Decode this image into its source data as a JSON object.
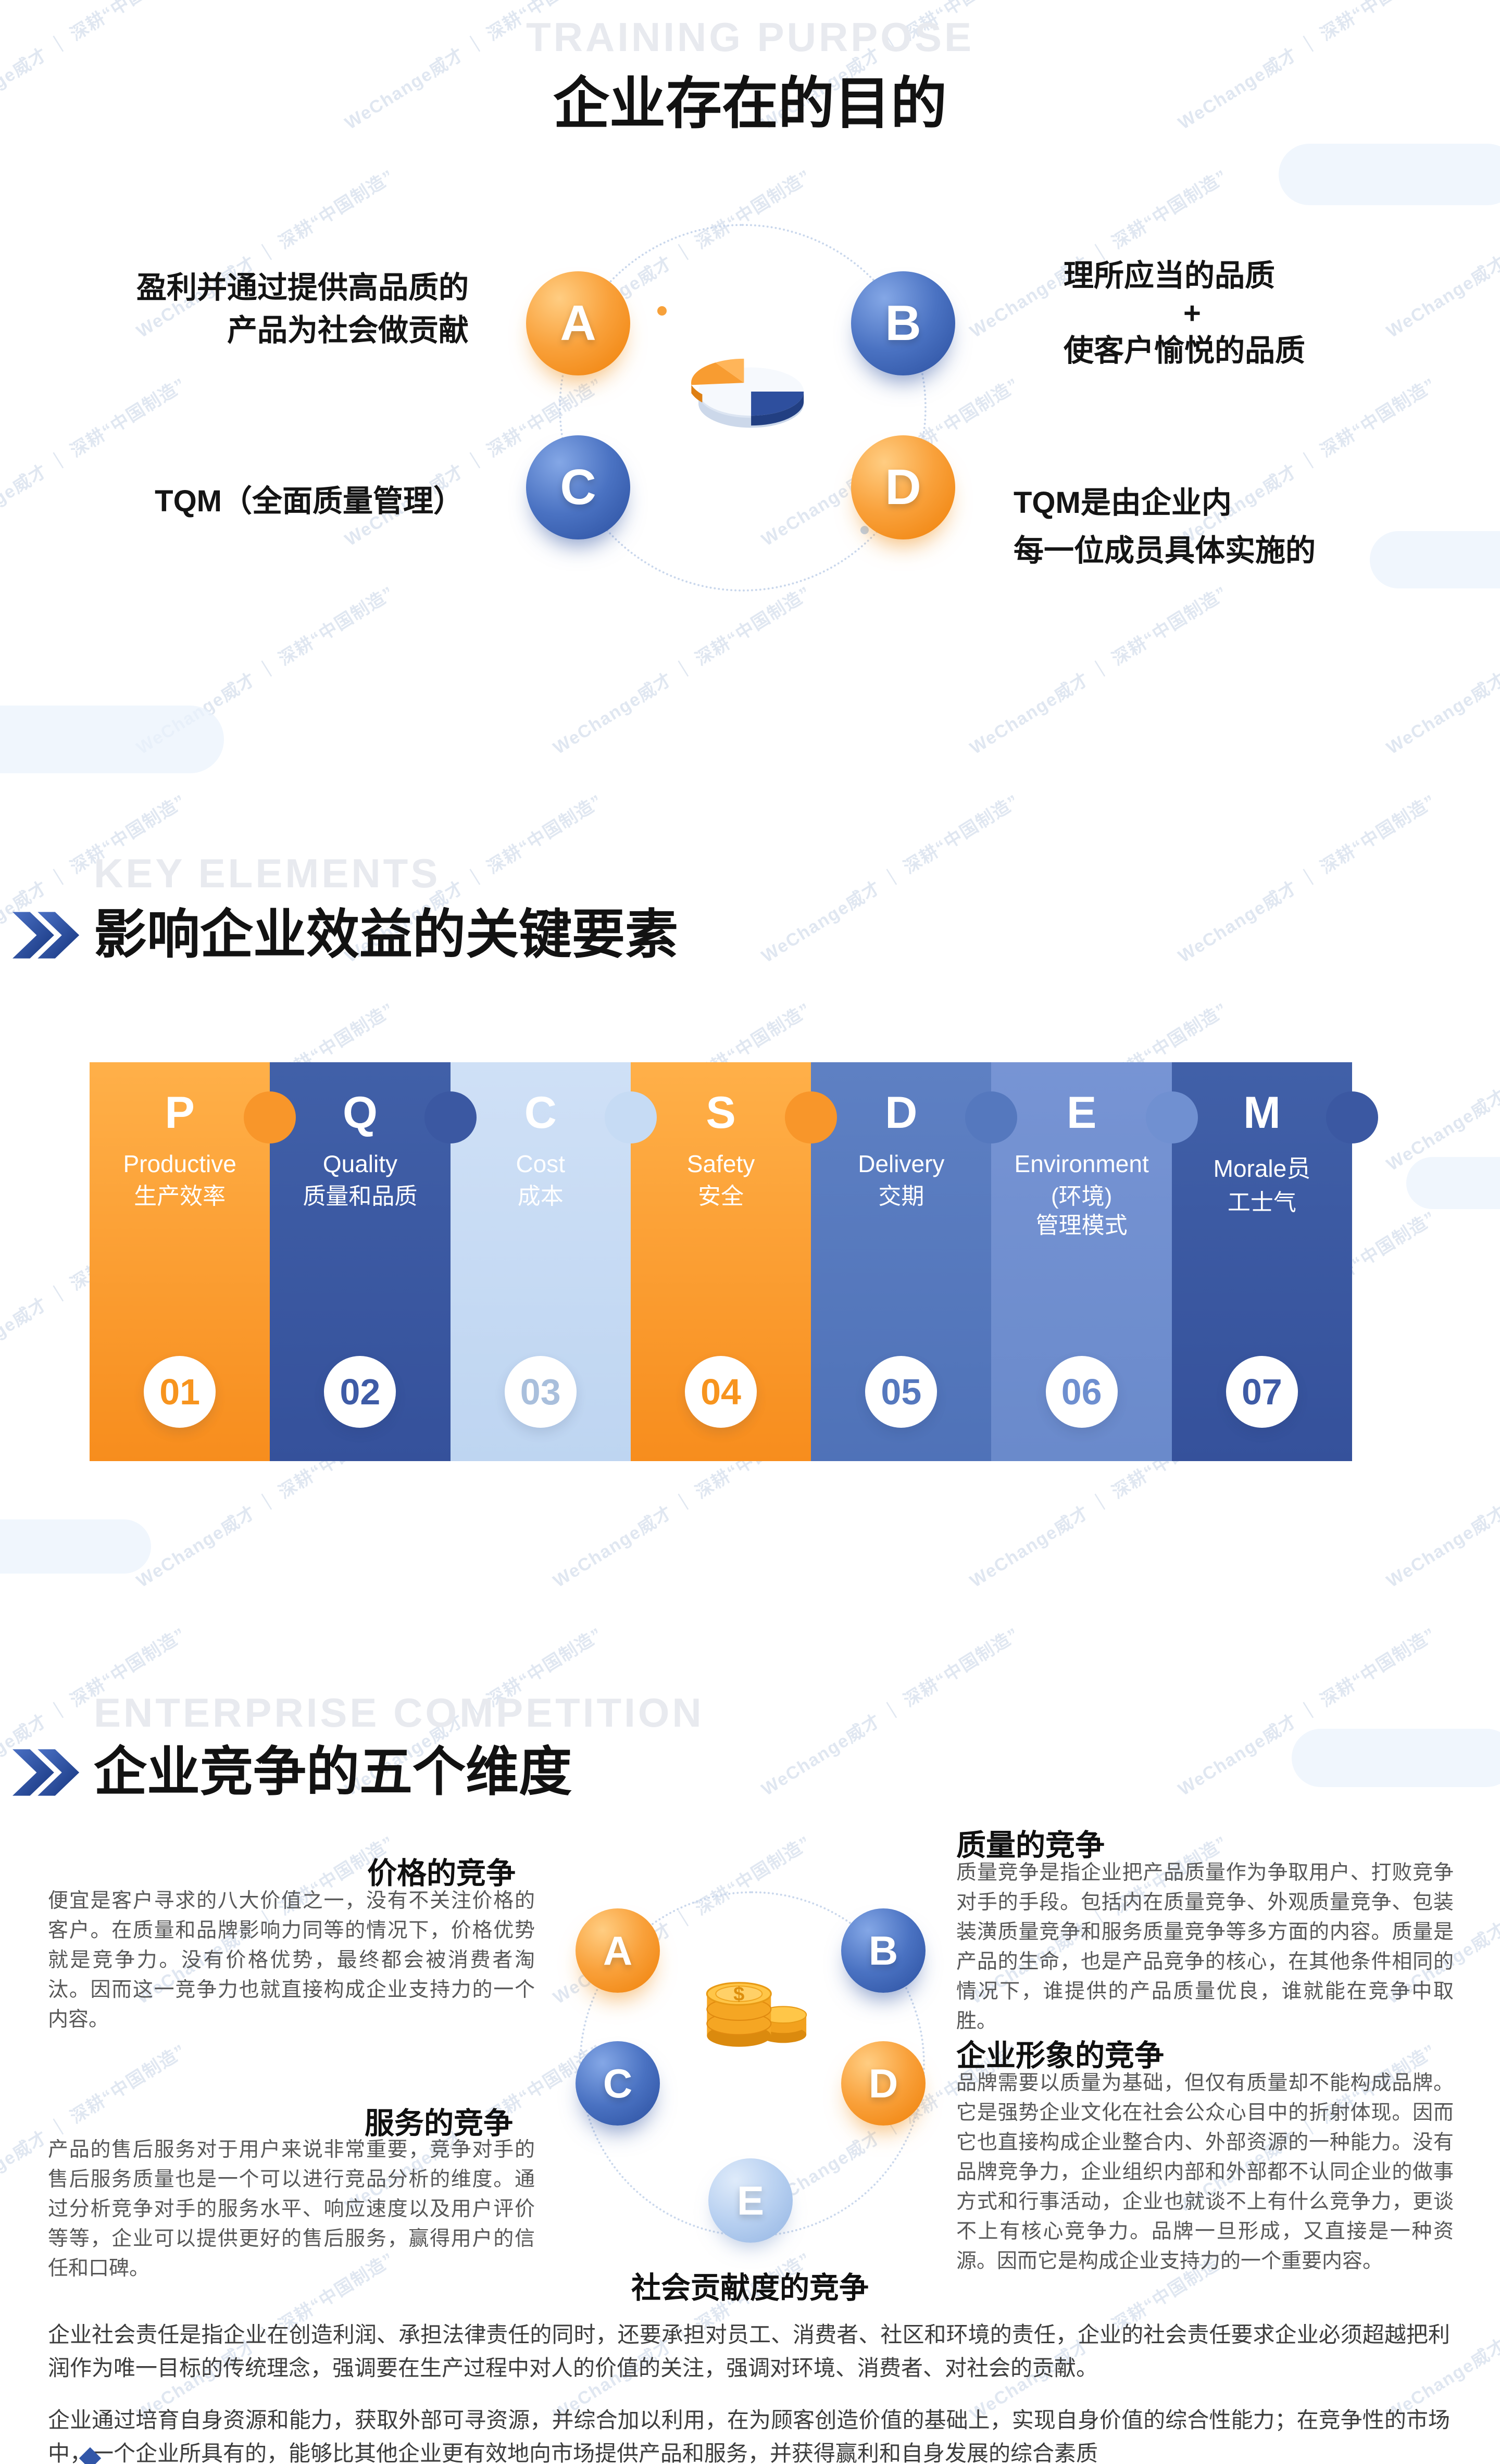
{
  "page": {
    "background": "#ffffff",
    "accent_orange": "#F7941E",
    "accent_blue": "#3D5BA7",
    "accent_pale_blue": "#C5DAF4"
  },
  "watermark": {
    "text": "WeChange威才 ｜ 深耕“中国制造”"
  },
  "section1": {
    "ghost_title": "TRAINING PURPOSE",
    "title": "企业存在的目的",
    "center_icon": "pie-chart-3d-icon",
    "items": [
      {
        "letter": "A",
        "theme": "orange",
        "line1": "盈利并通过提供高品质的",
        "line2": "产品为社会做贡献"
      },
      {
        "letter": "B",
        "theme": "blue",
        "line1": "理所应当的品质",
        "line2": "+",
        "line3": "使客户愉悦的品质"
      },
      {
        "letter": "C",
        "theme": "blue",
        "line1": "TQM（全面质量管理）"
      },
      {
        "letter": "D",
        "theme": "orange",
        "line1": "TQM是由企业内",
        "line2": "每一位成员具体实施的"
      }
    ]
  },
  "section2": {
    "ghost_title": "KEY ELEMENTS",
    "title": "影响企业效益的关键要素",
    "puzzle": [
      {
        "letter": "P",
        "en": "Productive",
        "zh": "生产效率",
        "num": "01",
        "color": "#F7941E"
      },
      {
        "letter": "Q",
        "en": "Quality",
        "zh": "质量和品质",
        "num": "02",
        "color": "#3E5BA6"
      },
      {
        "letter": "C",
        "en": "Cost",
        "zh": "成本",
        "num": "03",
        "color": "#C5DAF4"
      },
      {
        "letter": "S",
        "en": "Safety",
        "zh": "安全",
        "num": "04",
        "color": "#F7941E"
      },
      {
        "letter": "D",
        "en": "Delivery",
        "zh": "交期",
        "num": "05",
        "color": "#5578BE"
      },
      {
        "letter": "E",
        "en": "Environment",
        "zh": "(环境)\n管理模式",
        "num": "06",
        "color": "#6E8FD0"
      },
      {
        "letter": "M",
        "en": "Morale员",
        "zh": "工士气",
        "num": "07",
        "color": "#3E5BA6"
      }
    ]
  },
  "section3": {
    "ghost_title": "ENTERPRISE COMPETITION",
    "title": "企业竞争的五个维度",
    "center_icon": "gold-coins-icon",
    "badges": [
      {
        "letter": "A",
        "theme": "orange"
      },
      {
        "letter": "B",
        "theme": "blue"
      },
      {
        "letter": "C",
        "theme": "blue"
      },
      {
        "letter": "D",
        "theme": "orange"
      },
      {
        "letter": "E",
        "theme": "lightblue"
      }
    ],
    "blocks": {
      "price": {
        "heading": "价格的竞争",
        "body": "便宜是客户寻求的八大价值之一，没有不关注价格的客户。在质量和品牌影响力同等的情况下，价格优势就是竞争力。没有价格优势，最终都会被消费者淘汰。因而这一竞争力也就直接构成企业支持力的一个内容。"
      },
      "service": {
        "heading": "服务的竞争",
        "body": "产品的售后服务对于用户来说非常重要，竞争对手的售后服务质量也是一个可以进行竞品分析的维度。通过分析竞争对手的服务水平、响应速度以及用户评价等等，企业可以提供更好的售后服务，赢得用户的信任和口碑。"
      },
      "quality": {
        "heading": "质量的竞争",
        "body": "质量竞争是指企业把产品质量作为争取用户、打败竞争对手的手段。包括内在质量竞争、外观质量竞争、包装装潢质量竞争和服务质量竞争等多方面的内容。质量是产品的生命，也是产品竞争的核心，在其他条件相同的情况下，谁提供的产品质量优良，谁就能在竞争中取胜。"
      },
      "image": {
        "heading": "企业形象的竞争",
        "body": "品牌需要以质量为基础，但仅有质量却不能构成品牌。它是强势企业文化在社会公众心目中的折射体现。因而它也直接构成企业整合内、外部资源的一种能力。没有品牌竞争力，企业组织内部和外部都不认同企业的做事方式和行事活动，企业也就谈不上有什么竞争力，更谈不上有核心竞争力。品牌一旦形成，又直接是一种资源。因而它是构成企业支持力的一个重要内容。"
      },
      "social": {
        "heading": "社会贡献度的竞争"
      }
    },
    "footer_paragraphs": [
      "企业社会责任是指企业在创造利润、承担法律责任的同时，还要承担对员工、消费者、社区和环境的责任，企业的社会责任要求企业必须超越把利润作为唯一目标的传统理念，强调要在生产过程中对人的价值的关注，强调对环境、消费者、对社会的贡献。",
      "企业通过培育自身资源和能力，获取外部可寻资源，并综合加以利用，在为顾客创造价值的基础上，实现自身价值的综合性能力；在竞争性的市场中，一个企业所具有的，能够比其他企业更有效地向市场提供产品和服务，并获得赢利和自身发展的综合素质"
    ]
  }
}
